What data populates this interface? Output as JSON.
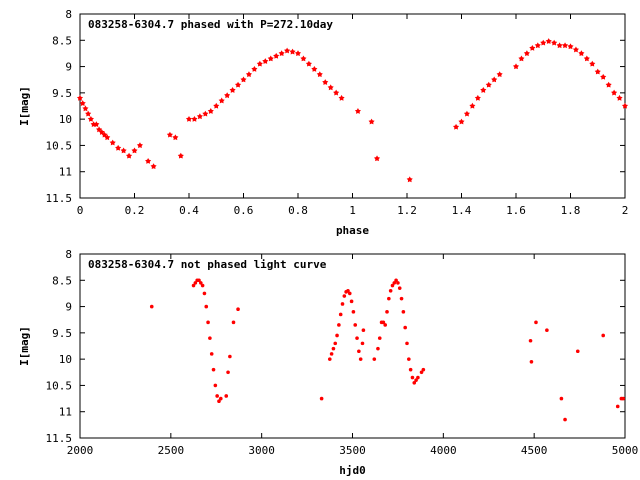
{
  "chart_data": [
    {
      "type": "scatter",
      "title": "083258-6304.7 phased with P=272.10day",
      "xlabel": "phase",
      "ylabel": "I[mag]",
      "xlim": [
        0,
        2
      ],
      "ylim": [
        11.5,
        8
      ],
      "y_inverted": true,
      "xticks": [
        "0",
        "0.2",
        "0.4",
        "0.6",
        "0.8",
        "1",
        "1.2",
        "1.4",
        "1.6",
        "1.8",
        "2"
      ],
      "yticks": [
        "8",
        "8.5",
        "9",
        "9.5",
        "10",
        "10.5",
        "11",
        "11.5"
      ],
      "point_color": "#ff0000",
      "marker": "star",
      "series": [
        {
          "x": [
            0.0,
            0.01,
            0.02,
            0.03,
            0.04,
            0.05,
            0.06,
            0.07,
            0.08,
            0.09,
            0.1,
            0.12,
            0.14,
            0.16,
            0.18,
            0.2,
            0.22,
            0.25,
            0.27,
            0.33,
            0.35,
            0.37,
            0.4,
            0.42,
            0.44,
            0.46,
            0.48,
            0.5,
            0.52,
            0.54,
            0.56,
            0.58,
            0.6,
            0.62,
            0.64,
            0.66,
            0.68,
            0.7,
            0.72,
            0.74,
            0.76,
            0.78,
            0.8,
            0.82,
            0.84,
            0.86,
            0.88,
            0.9,
            0.92,
            0.94,
            0.96,
            1.02,
            1.07,
            1.09,
            1.21,
            1.38,
            1.4,
            1.42,
            1.44,
            1.46,
            1.48,
            1.5,
            1.52,
            1.54,
            1.6,
            1.62,
            1.64,
            1.66,
            1.68,
            1.7,
            1.72,
            1.74,
            1.76,
            1.78,
            1.8,
            1.82,
            1.84,
            1.86,
            1.88,
            1.9,
            1.92,
            1.94,
            1.96,
            1.98,
            2.0
          ],
          "y": [
            9.6,
            9.7,
            9.8,
            9.9,
            10.0,
            10.1,
            10.1,
            10.2,
            10.25,
            10.3,
            10.35,
            10.45,
            10.55,
            10.6,
            10.7,
            10.6,
            10.5,
            10.8,
            10.9,
            10.3,
            10.35,
            10.7,
            10.0,
            10.0,
            9.95,
            9.9,
            9.85,
            9.75,
            9.65,
            9.55,
            9.45,
            9.35,
            9.25,
            9.15,
            9.05,
            8.95,
            8.9,
            8.85,
            8.8,
            8.75,
            8.7,
            8.72,
            8.75,
            8.85,
            8.95,
            9.05,
            9.15,
            9.3,
            9.4,
            9.5,
            9.6,
            9.85,
            10.05,
            10.75,
            11.15,
            10.15,
            10.05,
            9.9,
            9.75,
            9.6,
            9.45,
            9.35,
            9.25,
            9.15,
            9.0,
            8.85,
            8.75,
            8.65,
            8.6,
            8.55,
            8.52,
            8.55,
            8.6,
            8.6,
            8.62,
            8.68,
            8.75,
            8.85,
            8.95,
            9.1,
            9.2,
            9.35,
            9.5,
            9.6,
            9.75
          ]
        }
      ]
    },
    {
      "type": "scatter",
      "title": "083258-6304.7 not phased light curve",
      "xlabel": "hjd0",
      "ylabel": "I[mag]",
      "xlim": [
        2000,
        5000
      ],
      "ylim": [
        11.5,
        8
      ],
      "y_inverted": true,
      "xticks": [
        "2000",
        "2500",
        "3000",
        "3500",
        "4000",
        "4500",
        "5000"
      ],
      "yticks": [
        "8",
        "8.5",
        "9",
        "9.5",
        "10",
        "10.5",
        "11",
        "11.5"
      ],
      "point_color": "#ff0000",
      "marker": "dot",
      "series": [
        {
          "x": [
            2395,
            2625,
            2635,
            2645,
            2655,
            2665,
            2675,
            2685,
            2695,
            2705,
            2715,
            2725,
            2735,
            2745,
            2755,
            2765,
            2775,
            2805,
            2815,
            2825,
            2845,
            2870,
            3330,
            3375,
            3385,
            3395,
            3405,
            3415,
            3425,
            3435,
            3445,
            3455,
            3465,
            3475,
            3485,
            3495,
            3505,
            3515,
            3525,
            3535,
            3545,
            3555,
            3560,
            3620,
            3640,
            3650,
            3660,
            3670,
            3680,
            3690,
            3700,
            3710,
            3720,
            3730,
            3740,
            3750,
            3760,
            3770,
            3780,
            3790,
            3800,
            3810,
            3820,
            3830,
            3840,
            3850,
            3860,
            3880,
            3890,
            4480,
            4485,
            4510,
            4570,
            4650,
            4670,
            4740,
            4880,
            4960,
            4980,
            4990
          ],
          "y": [
            9.0,
            8.6,
            8.55,
            8.5,
            8.5,
            8.55,
            8.6,
            8.75,
            9.0,
            9.3,
            9.6,
            9.9,
            10.2,
            10.5,
            10.7,
            10.8,
            10.75,
            10.7,
            10.25,
            9.95,
            9.3,
            9.05,
            10.75,
            10.0,
            9.9,
            9.8,
            9.7,
            9.55,
            9.35,
            9.15,
            8.95,
            8.8,
            8.72,
            8.7,
            8.75,
            8.9,
            9.1,
            9.35,
            9.6,
            9.85,
            10.0,
            9.7,
            9.45,
            10.0,
            9.8,
            9.6,
            9.3,
            9.3,
            9.35,
            9.1,
            8.85,
            8.7,
            8.6,
            8.55,
            8.5,
            8.55,
            8.65,
            8.85,
            9.1,
            9.4,
            9.7,
            10.0,
            10.2,
            10.35,
            10.45,
            10.4,
            10.35,
            10.25,
            10.2,
            9.65,
            10.05,
            9.3,
            9.45,
            10.75,
            11.15,
            9.85,
            9.55,
            10.9,
            10.75,
            10.75
          ]
        }
      ]
    }
  ]
}
